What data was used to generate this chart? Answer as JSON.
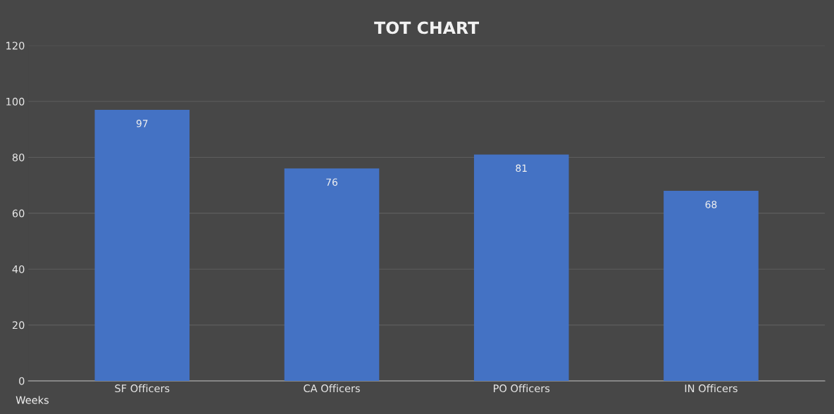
{
  "chart_data": {
    "type": "bar",
    "title": "TOT CHART",
    "xlabel": "Weeks",
    "categories": [
      "SF Officers",
      "CA Officers",
      "PO Officers",
      "IN Officers"
    ],
    "values": [
      97,
      76,
      81,
      68
    ],
    "color": "#4472c4",
    "ylim": [
      0,
      120
    ],
    "yticks": [
      0,
      20,
      40,
      60,
      80,
      100,
      120
    ],
    "grid": "y",
    "data_labels": true
  }
}
